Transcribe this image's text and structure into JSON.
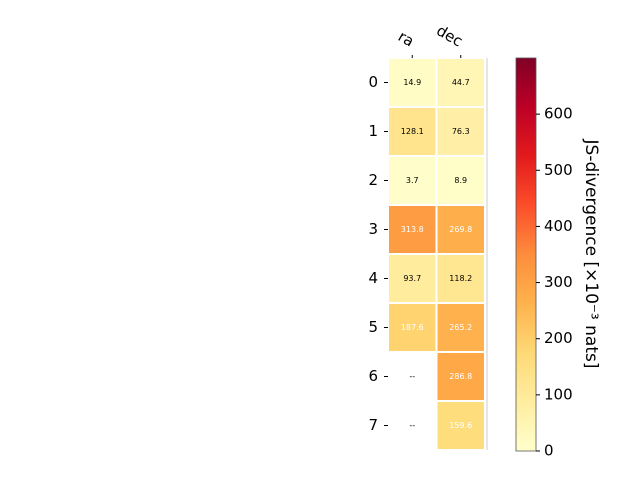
{
  "chart_data": {
    "type": "heatmap",
    "columns": [
      "ra",
      "dec"
    ],
    "rows": [
      "0",
      "1",
      "2",
      "3",
      "4",
      "5",
      "6",
      "7"
    ],
    "values": [
      [
        14.9,
        44.7
      ],
      [
        128.1,
        76.3
      ],
      [
        3.7,
        8.9
      ],
      [
        313.8,
        269.8
      ],
      [
        93.7,
        118.2
      ],
      [
        187.6,
        265.2
      ],
      [
        null,
        286.8
      ],
      [
        null,
        159.6
      ]
    ],
    "cell_labels": [
      [
        "14.9",
        "44.7"
      ],
      [
        "128.1",
        "76.3"
      ],
      [
        "3.7",
        "8.9"
      ],
      [
        "313.8",
        "269.8"
      ],
      [
        "93.7",
        "118.2"
      ],
      [
        "187.6",
        "265.2"
      ],
      [
        "--",
        "286.8"
      ],
      [
        "--",
        "159.6"
      ]
    ],
    "colorbar": {
      "label": "JS-divergence [×10⁻³ nats]",
      "range": [
        0,
        700
      ],
      "ticks": [
        "0",
        "100",
        "200",
        "300",
        "400",
        "500",
        "600"
      ],
      "tick_values": [
        0,
        100,
        200,
        300,
        400,
        500,
        600
      ],
      "colormap": "YlOrRd",
      "colormap_stops": [
        "#ffffcc",
        "#ffeda0",
        "#fed976",
        "#feb24c",
        "#fd8d3c",
        "#fc4e2a",
        "#e31a1c",
        "#bd0026",
        "#800026"
      ]
    },
    "text_color_threshold": 150,
    "grid": false
  }
}
